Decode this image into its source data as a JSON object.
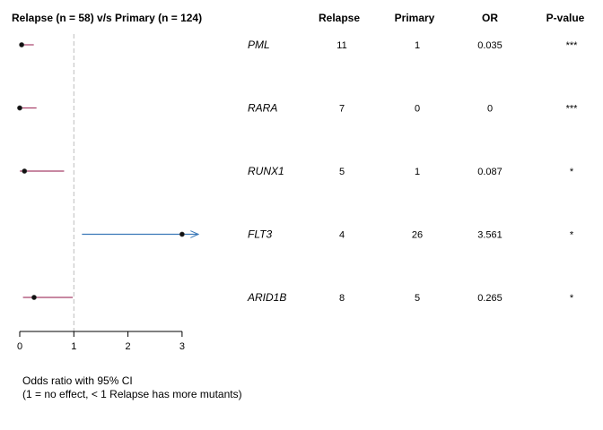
{
  "chart_data": {
    "type": "forest",
    "title": "Relapse (n = 58) v/s Primary (n = 124)",
    "columns": {
      "relapse": "Relapse",
      "primary": "Primary",
      "or": "OR",
      "pvalue": "P-value"
    },
    "x_ticks": [
      "0",
      "1",
      "2",
      "3"
    ],
    "xlim": [
      0,
      3
    ],
    "reference_line": 1,
    "rows": [
      {
        "gene": "PML",
        "relapse": "11",
        "primary": "1",
        "or_label": "0.035",
        "pvalue": "***",
        "or": 0.035,
        "ci_low": 0.004,
        "ci_high": 0.26,
        "color": "#a8416a",
        "arrow": false
      },
      {
        "gene": "RARA",
        "relapse": "7",
        "primary": "0",
        "or_label": "0",
        "pvalue": "***",
        "or": 0.0,
        "ci_low": 0.0,
        "ci_high": 0.31,
        "color": "#a8416a",
        "arrow": false
      },
      {
        "gene": "RUNX1",
        "relapse": "5",
        "primary": "1",
        "or_label": "0.087",
        "pvalue": "*",
        "or": 0.087,
        "ci_low": 0.002,
        "ci_high": 0.82,
        "color": "#a8416a",
        "arrow": false
      },
      {
        "gene": "FLT3",
        "relapse": "4",
        "primary": "26",
        "or_label": "3.561",
        "pvalue": "*",
        "or": 3.0,
        "ci_low": 1.15,
        "ci_high": 3.3,
        "color": "#3a78b8",
        "arrow": true
      },
      {
        "gene": "ARID1B",
        "relapse": "8",
        "primary": "5",
        "or_label": "0.265",
        "pvalue": "*",
        "or": 0.265,
        "ci_low": 0.06,
        "ci_high": 0.98,
        "color": "#a8416a",
        "arrow": false
      }
    ],
    "footnote_line1": "Odds ratio with 95% CI",
    "footnote_line2": "(1 = no effect, < 1 Relapse has more mutants)"
  }
}
